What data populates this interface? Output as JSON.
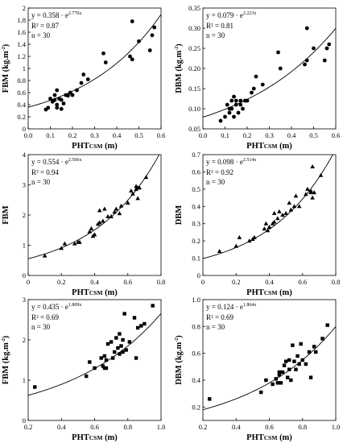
{
  "chart_data": [
    {
      "type": "scatter",
      "marker": "circle",
      "ylabel": "FBM (kg.m",
      "ylabel_sup": "-2",
      "ylabel_end": ")",
      "xlabel": "PHT",
      "xlabel_sub": "CSM",
      "xlabel_end": " (m)",
      "xlim": [
        0,
        0.6
      ],
      "ylim": [
        0,
        2
      ],
      "xticks": [
        "0.0",
        "0.1",
        "0.2",
        "0.3",
        "0.4",
        "0.5",
        "0.6"
      ],
      "yticks": [
        "0",
        "0.2",
        "0.4",
        "0.6",
        "0.8",
        "1",
        "1.2",
        "1.4",
        "1.6",
        "1.8",
        "2"
      ],
      "equation": "y = 0.358 · e",
      "equation_exp": "2.776x",
      "r2": "R² = 0.87",
      "n": "n = 30",
      "fit": {
        "a": 0.358,
        "b": 2.776
      },
      "x": [
        0.08,
        0.09,
        0.1,
        0.11,
        0.12,
        0.12,
        0.13,
        0.13,
        0.13,
        0.14,
        0.15,
        0.15,
        0.16,
        0.17,
        0.18,
        0.19,
        0.2,
        0.22,
        0.24,
        0.25,
        0.27,
        0.34,
        0.35,
        0.46,
        0.47,
        0.47,
        0.5,
        0.55,
        0.56,
        0.57
      ],
      "y": [
        0.32,
        0.35,
        0.5,
        0.45,
        0.48,
        0.56,
        0.4,
        0.35,
        0.64,
        0.5,
        0.33,
        0.48,
        0.42,
        0.56,
        0.55,
        0.6,
        0.56,
        0.64,
        0.76,
        0.9,
        0.82,
        1.25,
        1.1,
        1.2,
        1.15,
        1.78,
        1.45,
        1.3,
        1.55,
        1.68
      ]
    },
    {
      "type": "scatter",
      "marker": "circle",
      "ylabel": "DBM (kg.m",
      "ylabel_sup": "-2",
      "ylabel_end": ")",
      "xlabel": "PHT",
      "xlabel_sub": "CSM",
      "xlabel_end": " (m)",
      "xlim": [
        0,
        0.6
      ],
      "ylim": [
        0.05,
        0.35
      ],
      "xticks": [
        "0.0",
        "0.1",
        "0.2",
        "0.3",
        "0.4",
        "0.5",
        "0.6"
      ],
      "yticks": [
        "0.05",
        "0.10",
        "0.15",
        "0.20",
        "0.25",
        "0.30",
        "0.35"
      ],
      "equation": "y = 0.079 · e",
      "equation_exp": "2.223x",
      "r2": "R² = 0.81",
      "n": "n = 30",
      "fit": {
        "a": 0.079,
        "b": 2.223
      },
      "x": [
        0.08,
        0.1,
        0.11,
        0.12,
        0.12,
        0.13,
        0.13,
        0.14,
        0.14,
        0.15,
        0.15,
        0.16,
        0.17,
        0.17,
        0.18,
        0.19,
        0.2,
        0.22,
        0.23,
        0.24,
        0.27,
        0.34,
        0.35,
        0.46,
        0.47,
        0.47,
        0.5,
        0.55,
        0.56,
        0.57
      ],
      "y": [
        0.07,
        0.08,
        0.11,
        0.09,
        0.1,
        0.12,
        0.1,
        0.13,
        0.08,
        0.11,
        0.12,
        0.09,
        0.12,
        0.11,
        0.1,
        0.12,
        0.12,
        0.14,
        0.15,
        0.18,
        0.16,
        0.24,
        0.2,
        0.21,
        0.22,
        0.3,
        0.25,
        0.22,
        0.25,
        0.26
      ]
    },
    {
      "type": "scatter",
      "marker": "triangle",
      "ylabel": "FBM",
      "ylabel_sup": "",
      "ylabel_end": "",
      "xlabel": "PHT",
      "xlabel_sub": "CSM",
      "xlabel_end": " (m)",
      "xlim": [
        0,
        0.8
      ],
      "ylim": [
        0,
        4
      ],
      "xticks": [
        "0",
        "0.2",
        "0.4",
        "0.6",
        "0.8"
      ],
      "yticks": [
        "0",
        "1",
        "2",
        "3",
        "4"
      ],
      "equation": "y = 0.554 · e",
      "equation_exp": "2.506x",
      "r2": "R² = 0.94",
      "n": "n = 30",
      "fit": {
        "a": 0.554,
        "b": 2.506
      },
      "x": [
        0.1,
        0.2,
        0.22,
        0.28,
        0.3,
        0.31,
        0.37,
        0.38,
        0.39,
        0.4,
        0.42,
        0.43,
        0.43,
        0.45,
        0.46,
        0.48,
        0.5,
        0.52,
        0.53,
        0.55,
        0.56,
        0.6,
        0.62,
        0.63,
        0.65,
        0.65,
        0.66,
        0.66,
        0.67,
        0.71
      ],
      "y": [
        0.65,
        0.9,
        1.05,
        1.05,
        1.1,
        1.1,
        1.45,
        1.55,
        1.3,
        1.35,
        1.7,
        1.75,
        2.15,
        1.8,
        2.2,
        1.95,
        1.95,
        2.1,
        2.2,
        2.05,
        2.3,
        2.4,
        2.8,
        2.7,
        2.85,
        2.95,
        2.9,
        2.55,
        2.9,
        3.25
      ]
    },
    {
      "type": "scatter",
      "marker": "triangle",
      "ylabel": "DBM",
      "ylabel_sup": "",
      "ylabel_end": "",
      "xlabel": "PHT",
      "xlabel_sub": "CSM",
      "xlabel_end": " (m)",
      "xlim": [
        0,
        0.8
      ],
      "ylim": [
        0,
        0.7
      ],
      "xticks": [
        "0",
        "0.2",
        "0.4",
        "0.6",
        "0.8"
      ],
      "yticks": [
        "0",
        "0.1",
        "0.2",
        "0.3",
        "0.4",
        "0.5",
        "0.6",
        "0.7"
      ],
      "equation": "y = 0.098 · e",
      "equation_exp": "2.514x",
      "r2": "R² = 0.92",
      "n": "n = 30",
      "fit": {
        "a": 0.098,
        "b": 2.514
      },
      "x": [
        0.1,
        0.2,
        0.22,
        0.28,
        0.3,
        0.31,
        0.37,
        0.38,
        0.39,
        0.4,
        0.42,
        0.43,
        0.43,
        0.45,
        0.46,
        0.48,
        0.5,
        0.52,
        0.53,
        0.55,
        0.56,
        0.58,
        0.62,
        0.63,
        0.65,
        0.65,
        0.66,
        0.66,
        0.67,
        0.71
      ],
      "y": [
        0.14,
        0.17,
        0.22,
        0.2,
        0.21,
        0.22,
        0.27,
        0.3,
        0.26,
        0.28,
        0.3,
        0.31,
        0.36,
        0.33,
        0.37,
        0.35,
        0.36,
        0.42,
        0.38,
        0.4,
        0.46,
        0.4,
        0.47,
        0.5,
        0.48,
        0.49,
        0.63,
        0.45,
        0.48,
        0.58
      ]
    },
    {
      "type": "scatter",
      "marker": "square",
      "ylabel": "FBM (kg.m",
      "ylabel_sup": "-2",
      "ylabel_end": ")",
      "xlabel": "PHT",
      "xlabel_sub": "CSM",
      "xlabel_end": " (m)",
      "xlim": [
        0.2,
        1.0
      ],
      "ylim": [
        0,
        3
      ],
      "xticks": [
        "0.2",
        "0.4",
        "0.6",
        "0.8",
        "1.0"
      ],
      "yticks": [
        "0",
        "1",
        "2",
        "3"
      ],
      "equation": "y = 0.435 · e",
      "equation_exp": "1.809x",
      "r2": "R² = 0.69",
      "n": "n = 30",
      "fit": {
        "a": 0.435,
        "b": 1.809
      },
      "x": [
        0.24,
        0.55,
        0.57,
        0.6,
        0.64,
        0.65,
        0.66,
        0.66,
        0.67,
        0.67,
        0.68,
        0.7,
        0.71,
        0.72,
        0.73,
        0.74,
        0.75,
        0.75,
        0.76,
        0.77,
        0.77,
        0.78,
        0.79,
        0.81,
        0.84,
        0.85,
        0.86,
        0.88,
        0.9,
        0.95
      ],
      "y": [
        0.83,
        1.1,
        1.45,
        1.3,
        1.55,
        1.35,
        1.3,
        1.6,
        1.3,
        1.5,
        1.9,
        1.95,
        1.55,
        1.7,
        2.05,
        1.8,
        1.65,
        2.15,
        1.85,
        1.7,
        2.0,
        2.65,
        1.75,
        1.95,
        2.55,
        1.55,
        2.3,
        2.35,
        2.4,
        2.85
      ]
    },
    {
      "type": "scatter",
      "marker": "square",
      "ylabel": "DBM (kg.m",
      "ylabel_sup": "-2",
      "ylabel_end": ")",
      "xlabel": "PHT",
      "xlabel_sub": "CSM",
      "xlabel_end": " (m)",
      "xlim": [
        0.2,
        1.0
      ],
      "ylim": [
        0.1,
        1.0
      ],
      "xticks": [
        "0.2",
        "0.4",
        "0.6",
        "0.8",
        "1.0"
      ],
      "yticks": [
        "0.2",
        "0.4",
        "0.6",
        "0.8",
        "1.0"
      ],
      "equation": "y = 0.124 · e",
      "equation_exp": "1.864x",
      "r2": "R² = 0.69",
      "n": "n = 30",
      "fit": {
        "a": 0.124,
        "b": 1.864
      },
      "x": [
        0.24,
        0.55,
        0.58,
        0.62,
        0.64,
        0.65,
        0.66,
        0.66,
        0.67,
        0.68,
        0.69,
        0.7,
        0.71,
        0.72,
        0.72,
        0.73,
        0.74,
        0.75,
        0.76,
        0.77,
        0.78,
        0.79,
        0.8,
        0.82,
        0.84,
        0.85,
        0.87,
        0.88,
        0.92,
        0.95
      ],
      "y": [
        0.26,
        0.31,
        0.4,
        0.37,
        0.41,
        0.38,
        0.44,
        0.46,
        0.38,
        0.46,
        0.51,
        0.54,
        0.42,
        0.48,
        0.55,
        0.4,
        0.66,
        0.54,
        0.48,
        0.58,
        0.52,
        0.67,
        0.55,
        0.52,
        0.61,
        0.42,
        0.65,
        0.61,
        0.71,
        0.81
      ]
    }
  ]
}
